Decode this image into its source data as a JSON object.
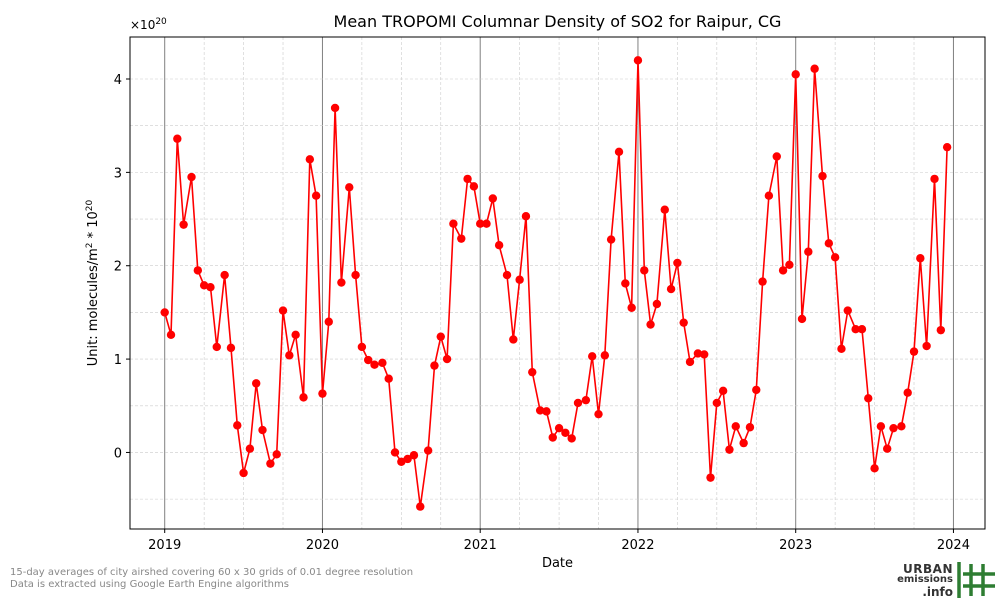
{
  "chart_data": {
    "type": "line",
    "title": "Mean TROPOMI Columnar Density of SO2 for Raipur, CG",
    "multiplier_label": "×10",
    "multiplier_exp": "20",
    "xlabel": "Date",
    "ylabel": "Unit: molecules/m",
    "ylabel_sup": "2",
    "ylabel_tail": " * 10",
    "ylabel_sup2": "20",
    "xlim": [
      2018.78,
      2024.2
    ],
    "ylim": [
      -0.82,
      4.45
    ],
    "x_ticks": [
      2019,
      2020,
      2021,
      2022,
      2023,
      2024
    ],
    "x_tick_labels": [
      "2019",
      "2020",
      "2021",
      "2022",
      "2023",
      "2024"
    ],
    "y_ticks": [
      0,
      1,
      2,
      3,
      4
    ],
    "y_tick_labels": [
      "0",
      "1",
      "2",
      "3",
      "4"
    ],
    "grid": true,
    "line_color": "#ff0000",
    "series": [
      {
        "x": [
          2019.0,
          2019.04,
          2019.08,
          2019.12,
          2019.17,
          2019.21,
          2019.25,
          2019.29,
          2019.33,
          2019.38,
          2019.42,
          2019.46,
          2019.5,
          2019.54,
          2019.58,
          2019.62,
          2019.67,
          2019.71,
          2019.75,
          2019.79,
          2019.83,
          2019.88,
          2019.92,
          2019.96,
          2020.0,
          2020.04,
          2020.08,
          2020.12,
          2020.17,
          2020.21,
          2020.25,
          2020.29,
          2020.33,
          2020.38,
          2020.42,
          2020.46,
          2020.5,
          2020.54,
          2020.58,
          2020.62,
          2020.67,
          2020.71,
          2020.75,
          2020.79,
          2020.83,
          2020.88,
          2020.92,
          2020.96,
          2021.0,
          2021.04,
          2021.08,
          2021.12,
          2021.17,
          2021.21,
          2021.25,
          2021.29,
          2021.33,
          2021.38,
          2021.42,
          2021.46,
          2021.5,
          2021.54,
          2021.58,
          2021.62,
          2021.67,
          2021.71,
          2021.75,
          2021.79,
          2021.83,
          2021.88,
          2021.92,
          2021.96,
          2022.0,
          2022.04,
          2022.08,
          2022.12,
          2022.17,
          2022.21,
          2022.25,
          2022.29,
          2022.33,
          2022.38,
          2022.42,
          2022.46,
          2022.5,
          2022.54,
          2022.58,
          2022.62,
          2022.67,
          2022.71,
          2022.75,
          2022.79,
          2022.83,
          2022.88,
          2022.92,
          2022.96,
          2023.0,
          2023.04,
          2023.08,
          2023.12,
          2023.17,
          2023.21,
          2023.25,
          2023.29,
          2023.33,
          2023.38,
          2023.42,
          2023.46,
          2023.5,
          2023.54,
          2023.58,
          2023.62,
          2023.67,
          2023.71,
          2023.75,
          2023.79,
          2023.83,
          2023.88,
          2023.92,
          2023.96
        ],
        "y": [
          1.5,
          1.26,
          3.36,
          2.44,
          2.95,
          1.95,
          1.79,
          1.77,
          1.13,
          1.9,
          1.12,
          0.29,
          -0.22,
          0.04,
          0.74,
          0.24,
          -0.12,
          -0.02,
          1.52,
          1.04,
          1.26,
          0.59,
          3.14,
          2.75,
          0.63,
          1.4,
          3.69,
          1.82,
          2.84,
          1.9,
          1.13,
          0.99,
          0.94,
          0.96,
          0.79,
          0.0,
          -0.1,
          -0.07,
          -0.03,
          -0.58,
          0.02,
          0.93,
          1.24,
          1.0,
          2.45,
          2.29,
          2.93,
          2.85,
          2.45,
          2.45,
          2.72,
          2.22,
          1.9,
          1.21,
          1.85,
          2.53,
          0.86,
          0.45,
          0.44,
          0.16,
          0.26,
          0.21,
          0.15,
          0.53,
          0.56,
          1.03,
          0.41,
          1.04,
          2.28,
          3.22,
          1.81,
          1.55,
          4.2,
          1.95,
          1.37,
          1.59,
          2.6,
          1.75,
          2.03,
          1.39,
          0.97,
          1.06,
          1.05,
          -0.27,
          0.53,
          0.66,
          0.03,
          0.28,
          0.1,
          0.27,
          0.67,
          1.83,
          2.75,
          3.17,
          1.95,
          2.01,
          4.05,
          1.43,
          2.15,
          4.11,
          2.96,
          2.24,
          2.09,
          1.11,
          1.52,
          1.32,
          1.32,
          0.58,
          -0.17,
          0.28,
          0.04,
          0.26,
          0.28,
          0.64,
          1.08,
          2.08,
          1.14,
          2.93,
          1.31,
          3.27
        ]
      }
    ]
  },
  "footer": {
    "line1": "15-day averages of city airshed covering 60 x 30 grids of 0.01 degree resolution",
    "line2": "Data is extracted using Google Earth Engine algorithms"
  },
  "logo": {
    "line1": "URBAN",
    "line2": "emissions",
    "line3": ".info",
    "colors": {
      "text": "#333333",
      "grid": "#2e7d32"
    }
  }
}
